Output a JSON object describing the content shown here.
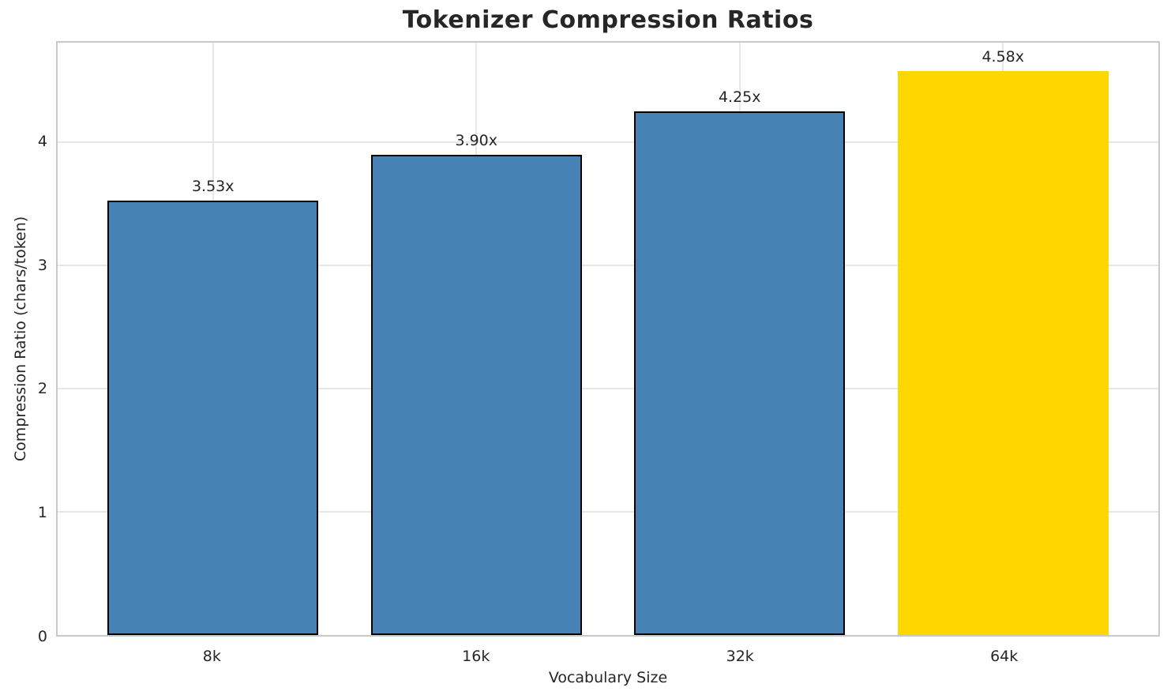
{
  "chart_data": {
    "type": "bar",
    "title": "Tokenizer Compression Ratios",
    "xlabel": "Vocabulary Size",
    "ylabel": "Compression Ratio (chars/token)",
    "categories": [
      "8k",
      "16k",
      "32k",
      "64k"
    ],
    "values": [
      3.53,
      3.9,
      4.25,
      4.58
    ],
    "bar_labels": [
      "3.53x",
      "3.90x",
      "4.25x",
      "4.58x"
    ],
    "bar_colors": [
      "#4682B4",
      "#4682B4",
      "#4682B4",
      "#FFD700"
    ],
    "bar_edge_colors": [
      "#000000",
      "#000000",
      "#000000",
      "none"
    ],
    "highlight_index": 3,
    "yticks": [
      0,
      1,
      2,
      3,
      4
    ],
    "ylim": [
      0,
      4.81
    ],
    "xlim": [
      -0.59,
      3.59
    ],
    "bar_width": 0.8,
    "grid": "on",
    "legend": "none",
    "grid_color": "#e7e7e7",
    "spine_color": "#c9c9c9",
    "text_color": "#262626",
    "background_color": "#ffffff"
  }
}
